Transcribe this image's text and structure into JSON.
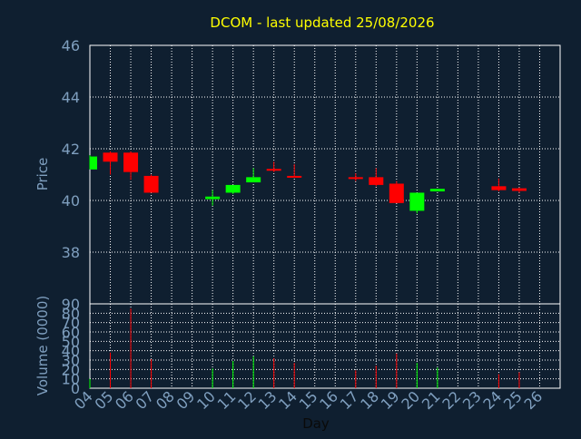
{
  "chart_data": {
    "type": "candlestick",
    "title": "DCOM - last updated 25/08/2026",
    "xlabel": "Day",
    "colors": {
      "background": "#0f1f30",
      "axis": "#ffffff",
      "grid": "#ffffff",
      "title": "#ffff00",
      "label": "#7f9fbf",
      "up": "#00ff00",
      "down": "#ff0000"
    },
    "x_ticks": [
      "04",
      "05",
      "06",
      "07",
      "08",
      "09",
      "10",
      "11",
      "12",
      "13",
      "14",
      "15",
      "16",
      "17",
      "18",
      "19",
      "20",
      "21",
      "22",
      "23",
      "24",
      "25",
      "26"
    ],
    "price_panel": {
      "ylabel": "Price",
      "ylim": [
        36,
        46
      ],
      "yticks": [
        38,
        40,
        42,
        44,
        46
      ],
      "grid": true
    },
    "volume_panel": {
      "ylabel": "Volume (0000)",
      "ylim": [
        0,
        90
      ],
      "yticks": [
        0,
        10,
        20,
        30,
        40,
        50,
        60,
        70,
        80,
        90
      ],
      "grid": true
    },
    "candles": [
      {
        "day": "04",
        "open": 41.2,
        "high": 41.75,
        "low": 41.2,
        "close": 41.7,
        "volume": 10
      },
      {
        "day": "05",
        "open": 41.85,
        "high": 41.9,
        "low": 41.0,
        "close": 41.5,
        "volume": 38
      },
      {
        "day": "06",
        "open": 41.85,
        "high": 41.9,
        "low": 40.8,
        "close": 41.1,
        "volume": 85
      },
      {
        "day": "07",
        "open": 40.95,
        "high": 41.0,
        "low": 40.3,
        "close": 40.3,
        "volume": 31
      },
      {
        "day": "10",
        "open": 40.05,
        "high": 40.4,
        "low": 39.8,
        "close": 40.15,
        "volume": 21
      },
      {
        "day": "11",
        "open": 40.3,
        "high": 40.6,
        "low": 40.25,
        "close": 40.6,
        "volume": 29
      },
      {
        "day": "12",
        "open": 40.7,
        "high": 41.25,
        "low": 40.7,
        "close": 40.9,
        "volume": 34
      },
      {
        "day": "13",
        "open": 41.22,
        "high": 41.5,
        "low": 41.1,
        "close": 41.15,
        "volume": 32
      },
      {
        "day": "14",
        "open": 40.95,
        "high": 41.4,
        "low": 40.9,
        "close": 40.9,
        "volume": 27
      },
      {
        "day": "17",
        "open": 40.9,
        "high": 41.05,
        "low": 40.75,
        "close": 40.87,
        "volume": 19
      },
      {
        "day": "18",
        "open": 40.9,
        "high": 41.25,
        "low": 40.55,
        "close": 40.6,
        "volume": 24
      },
      {
        "day": "19",
        "open": 40.65,
        "high": 40.75,
        "low": 39.9,
        "close": 39.9,
        "volume": 37
      },
      {
        "day": "20",
        "open": 39.6,
        "high": 40.3,
        "low": 39.5,
        "close": 40.3,
        "volume": 27
      },
      {
        "day": "21",
        "open": 40.35,
        "high": 40.45,
        "low": 40.35,
        "close": 40.45,
        "volume": 22
      },
      {
        "day": "24",
        "open": 40.55,
        "high": 40.85,
        "low": 40.35,
        "close": 40.4,
        "volume": 15
      },
      {
        "day": "25",
        "open": 40.47,
        "high": 40.5,
        "low": 40.3,
        "close": 40.37,
        "volume": 17
      }
    ]
  }
}
